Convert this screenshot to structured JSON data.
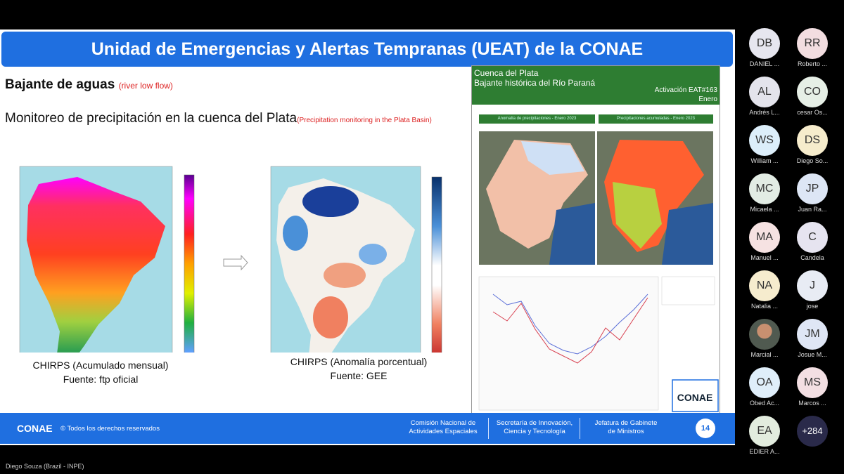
{
  "slide": {
    "title": "Unidad de Emergencias y Alertas Tempranas (UEAT) de la CONAE",
    "section": "Bajante de aguas",
    "section_en": "(river low flow)",
    "subtitle": "Monitoreo de precipitación en la cuenca del Plata",
    "subtitle_en": "(Precipitation monitoring in the Plata Basin)",
    "maps": [
      {
        "caption": "CHIRPS (Acumulado mensual)",
        "source": "Fuente: ftp oficial"
      },
      {
        "caption": "CHIRPS (Anomalía porcentual)",
        "source": "Fuente: GEE"
      }
    ],
    "panel": {
      "title": "Cuenca del Plata",
      "subtitle": "Bajante histórica del Río Paraná",
      "activation": "Activación EAT#163",
      "month": "Enero",
      "map_titles": [
        "Anomalía de precipitaciones - Enero 2023",
        "Precipitaciones acumuladas - Enero 2023"
      ],
      "logo": "CONAE"
    },
    "footer": {
      "logo": "CONAE",
      "copyright": "© Todos los derechos reservados",
      "institutions": [
        [
          "Comisión Nacional de",
          "Actividades Espaciales"
        ],
        [
          "Secretaría de Innovación,",
          "Ciencia y Tecnología"
        ],
        [
          "Jefatura de Gabinete",
          "de Ministros"
        ]
      ],
      "page": "14"
    }
  },
  "presenter": "Diego Souza (Brazil - INPE)",
  "participants": [
    {
      "initials": "DB",
      "name": "DANIEL ..."
    },
    {
      "initials": "RR",
      "name": "Roberto ..."
    },
    {
      "initials": "AL",
      "name": "Andrés L..."
    },
    {
      "initials": "CO",
      "name": "cesar Os..."
    },
    {
      "initials": "WS",
      "name": "William ..."
    },
    {
      "initials": "DS",
      "name": "Diego So..."
    },
    {
      "initials": "MC",
      "name": "Micaela ..."
    },
    {
      "initials": "JP",
      "name": "Juan Ra..."
    },
    {
      "initials": "MA",
      "name": "Manuel ..."
    },
    {
      "initials": "C",
      "name": "Candela"
    },
    {
      "initials": "NA",
      "name": "Natalia ..."
    },
    {
      "initials": "J",
      "name": "jose"
    },
    {
      "name": "Marcial ..."
    },
    {
      "initials": "JM",
      "name": "Josue M..."
    },
    {
      "initials": "OA",
      "name": "Obed Ac..."
    },
    {
      "initials": "MS",
      "name": "Marcos ..."
    },
    {
      "initials": "EA",
      "name": "EDIER A..."
    }
  ],
  "more": "+284"
}
